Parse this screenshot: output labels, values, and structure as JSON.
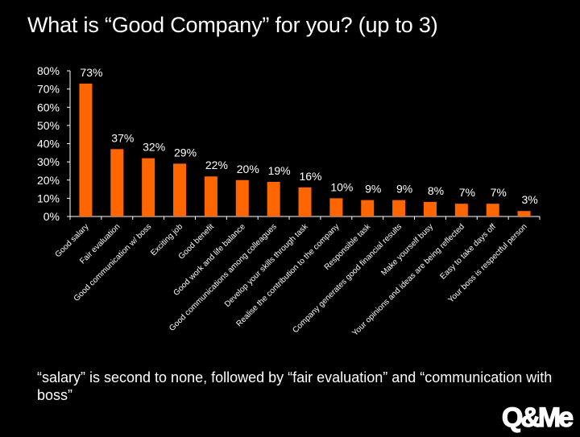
{
  "title": "What is “Good Company” for you? (up to 3)",
  "caption": "“salary” is second to none, followed by “fair evaluation” and “communication with boss”",
  "logo_text": "Q&Me",
  "colors": {
    "background": "#000000",
    "bar": "#FF6600",
    "text": "#FFFFFF",
    "axis": "#FFFFFF"
  },
  "chart_data": {
    "type": "bar",
    "title": "",
    "xlabel": "",
    "ylabel": "",
    "ylim": [
      0,
      80
    ],
    "yticks": [
      "0%",
      "10%",
      "20%",
      "30%",
      "40%",
      "50%",
      "60%",
      "70%",
      "80%"
    ],
    "grid": false,
    "legend": "none",
    "categories": [
      "Good salary",
      "Fair evaluation",
      "Good communication w/ boss",
      "Exciting job",
      "Good benefit",
      "Good work and life balance",
      "Good communications among colleagues",
      "Develop your skills through task",
      "Realise the contribution to the company",
      "Responsible task",
      "Company generates good financial results",
      "Make yourself busy",
      "Your opinions and ideas are being reflected",
      "Easy to take days off",
      "Your boss is respectful person"
    ],
    "values": [
      73,
      37,
      32,
      29,
      22,
      20,
      19,
      16,
      10,
      9,
      9,
      8,
      7,
      7,
      3
    ],
    "data_labels": [
      "73%",
      "37%",
      "32%",
      "29%",
      "22%",
      "20%",
      "19%",
      "16%",
      "10%",
      "9%",
      "9%",
      "8%",
      "7%",
      "7%",
      "3%"
    ]
  }
}
